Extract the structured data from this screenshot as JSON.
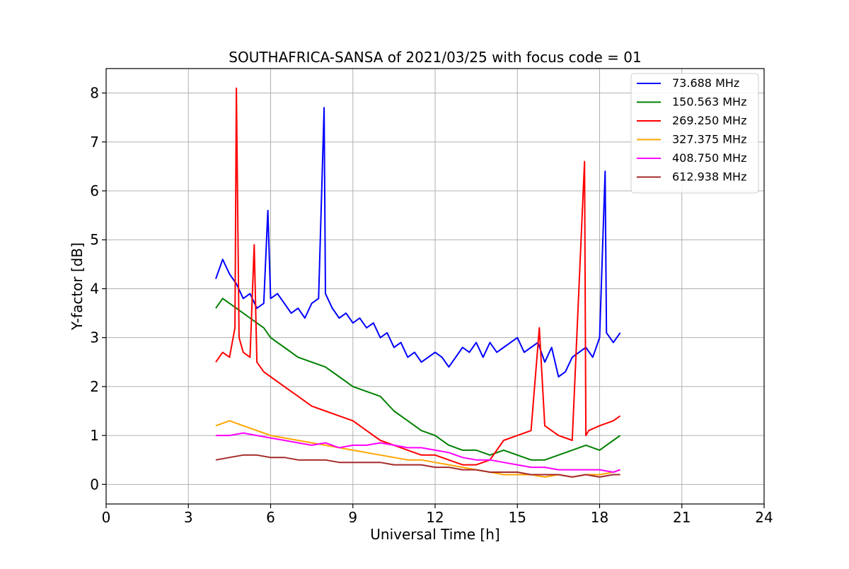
{
  "chart_data": {
    "type": "line",
    "title": "SOUTHAFRICA-SANSA of 2021/03/25 with focus code = 01",
    "xlabel": "Universal Time [h]",
    "ylabel": "Y-factor [dB]",
    "xlim": [
      0,
      24
    ],
    "ylim": [
      -0.4,
      8.5
    ],
    "xticks": [
      0,
      3,
      6,
      9,
      12,
      15,
      18,
      21,
      24
    ],
    "yticks": [
      0,
      1,
      2,
      3,
      4,
      5,
      6,
      7,
      8
    ],
    "grid": true,
    "legend_position": "top-right",
    "series": [
      {
        "name": " 73.688 MHz",
        "color": "#0000ff",
        "x": [
          4.0,
          4.25,
          4.5,
          4.75,
          5.0,
          5.25,
          5.5,
          5.75,
          5.9,
          6.0,
          6.25,
          6.5,
          6.75,
          7.0,
          7.25,
          7.5,
          7.75,
          7.95,
          8.0,
          8.25,
          8.5,
          8.75,
          9.0,
          9.25,
          9.5,
          9.75,
          10.0,
          10.25,
          10.5,
          10.75,
          11.0,
          11.25,
          11.5,
          11.75,
          12.0,
          12.25,
          12.5,
          12.75,
          13.0,
          13.25,
          13.5,
          13.75,
          14.0,
          14.25,
          14.5,
          14.75,
          15.0,
          15.25,
          15.5,
          15.75,
          16.0,
          16.25,
          16.5,
          16.75,
          17.0,
          17.25,
          17.5,
          17.75,
          18.0,
          18.2,
          18.25,
          18.5,
          18.75
        ],
        "y": [
          4.2,
          4.6,
          4.3,
          4.1,
          3.8,
          3.9,
          3.6,
          3.7,
          5.6,
          3.8,
          3.9,
          3.7,
          3.5,
          3.6,
          3.4,
          3.7,
          3.8,
          7.7,
          3.9,
          3.6,
          3.4,
          3.5,
          3.3,
          3.4,
          3.2,
          3.3,
          3.0,
          3.1,
          2.8,
          2.9,
          2.6,
          2.7,
          2.5,
          2.6,
          2.7,
          2.6,
          2.4,
          2.6,
          2.8,
          2.7,
          2.9,
          2.6,
          2.9,
          2.7,
          2.8,
          2.9,
          3.0,
          2.7,
          2.8,
          2.9,
          2.5,
          2.8,
          2.2,
          2.3,
          2.6,
          2.7,
          2.8,
          2.6,
          3.0,
          6.4,
          3.1,
          2.9,
          3.1
        ]
      },
      {
        "name": "150.563 MHz",
        "color": "#008000",
        "x": [
          4.0,
          4.25,
          4.5,
          4.75,
          5.0,
          5.25,
          5.5,
          5.75,
          6.0,
          6.5,
          7.0,
          7.5,
          8.0,
          8.5,
          9.0,
          9.5,
          10.0,
          10.5,
          11.0,
          11.5,
          12.0,
          12.5,
          13.0,
          13.5,
          14.0,
          14.5,
          15.0,
          15.5,
          16.0,
          16.5,
          17.0,
          17.5,
          18.0,
          18.5,
          18.75
        ],
        "y": [
          3.6,
          3.8,
          3.7,
          3.6,
          3.5,
          3.4,
          3.3,
          3.2,
          3.0,
          2.8,
          2.6,
          2.5,
          2.4,
          2.2,
          2.0,
          1.9,
          1.8,
          1.5,
          1.3,
          1.1,
          1.0,
          0.8,
          0.7,
          0.7,
          0.6,
          0.7,
          0.6,
          0.5,
          0.5,
          0.6,
          0.7,
          0.8,
          0.7,
          0.9,
          1.0
        ]
      },
      {
        "name": "269.250 MHz",
        "color": "#ff0000",
        "x": [
          4.0,
          4.25,
          4.5,
          4.7,
          4.75,
          4.85,
          5.0,
          5.25,
          5.4,
          5.5,
          5.75,
          6.0,
          6.5,
          7.0,
          7.5,
          8.0,
          8.5,
          9.0,
          9.5,
          10.0,
          10.5,
          11.0,
          11.5,
          12.0,
          12.5,
          13.0,
          13.5,
          14.0,
          14.5,
          15.0,
          15.5,
          15.8,
          16.0,
          16.5,
          17.0,
          17.45,
          17.5,
          17.6,
          18.0,
          18.5,
          18.75
        ],
        "y": [
          2.5,
          2.7,
          2.6,
          3.2,
          8.1,
          3.0,
          2.7,
          2.6,
          4.9,
          2.5,
          2.3,
          2.2,
          2.0,
          1.8,
          1.6,
          1.5,
          1.4,
          1.3,
          1.1,
          0.9,
          0.8,
          0.7,
          0.6,
          0.6,
          0.5,
          0.4,
          0.4,
          0.5,
          0.9,
          1.0,
          1.1,
          3.2,
          1.2,
          1.0,
          0.9,
          6.6,
          1.0,
          1.1,
          1.2,
          1.3,
          1.4
        ]
      },
      {
        "name": "327.375 MHz",
        "color": "#ffa500",
        "x": [
          4.0,
          4.5,
          5.0,
          5.5,
          6.0,
          6.5,
          7.0,
          7.5,
          8.0,
          8.5,
          9.0,
          9.5,
          10.0,
          10.5,
          11.0,
          11.5,
          12.0,
          12.5,
          13.0,
          13.5,
          14.0,
          14.5,
          15.0,
          15.5,
          16.0,
          16.5,
          17.0,
          17.5,
          18.0,
          18.5,
          18.75
        ],
        "y": [
          1.2,
          1.3,
          1.2,
          1.1,
          1.0,
          0.95,
          0.9,
          0.85,
          0.8,
          0.75,
          0.7,
          0.65,
          0.6,
          0.55,
          0.5,
          0.5,
          0.45,
          0.4,
          0.35,
          0.3,
          0.25,
          0.2,
          0.2,
          0.2,
          0.15,
          0.2,
          0.15,
          0.2,
          0.2,
          0.25,
          0.3
        ]
      },
      {
        "name": "408.750 MHz",
        "color": "#ff00ff",
        "x": [
          4.0,
          4.5,
          5.0,
          5.5,
          6.0,
          6.5,
          7.0,
          7.5,
          8.0,
          8.5,
          9.0,
          9.5,
          10.0,
          10.5,
          11.0,
          11.5,
          12.0,
          12.5,
          13.0,
          13.5,
          14.0,
          14.5,
          15.0,
          15.5,
          16.0,
          16.5,
          17.0,
          17.5,
          18.0,
          18.5,
          18.75
        ],
        "y": [
          1.0,
          1.0,
          1.05,
          1.0,
          0.95,
          0.9,
          0.85,
          0.8,
          0.85,
          0.75,
          0.8,
          0.8,
          0.85,
          0.8,
          0.75,
          0.75,
          0.7,
          0.65,
          0.55,
          0.5,
          0.5,
          0.45,
          0.4,
          0.35,
          0.35,
          0.3,
          0.3,
          0.3,
          0.3,
          0.25,
          0.3
        ]
      },
      {
        "name": "612.938 MHz",
        "color": "#a52a2a",
        "x": [
          4.0,
          4.5,
          5.0,
          5.5,
          6.0,
          6.5,
          7.0,
          7.5,
          8.0,
          8.5,
          9.0,
          9.5,
          10.0,
          10.5,
          11.0,
          11.5,
          12.0,
          12.5,
          13.0,
          13.5,
          14.0,
          14.5,
          15.0,
          15.5,
          16.0,
          16.5,
          17.0,
          17.5,
          18.0,
          18.5,
          18.75
        ],
        "y": [
          0.5,
          0.55,
          0.6,
          0.6,
          0.55,
          0.55,
          0.5,
          0.5,
          0.5,
          0.45,
          0.45,
          0.45,
          0.45,
          0.4,
          0.4,
          0.4,
          0.35,
          0.35,
          0.3,
          0.3,
          0.25,
          0.25,
          0.25,
          0.2,
          0.2,
          0.2,
          0.15,
          0.2,
          0.15,
          0.2,
          0.2
        ]
      }
    ]
  }
}
